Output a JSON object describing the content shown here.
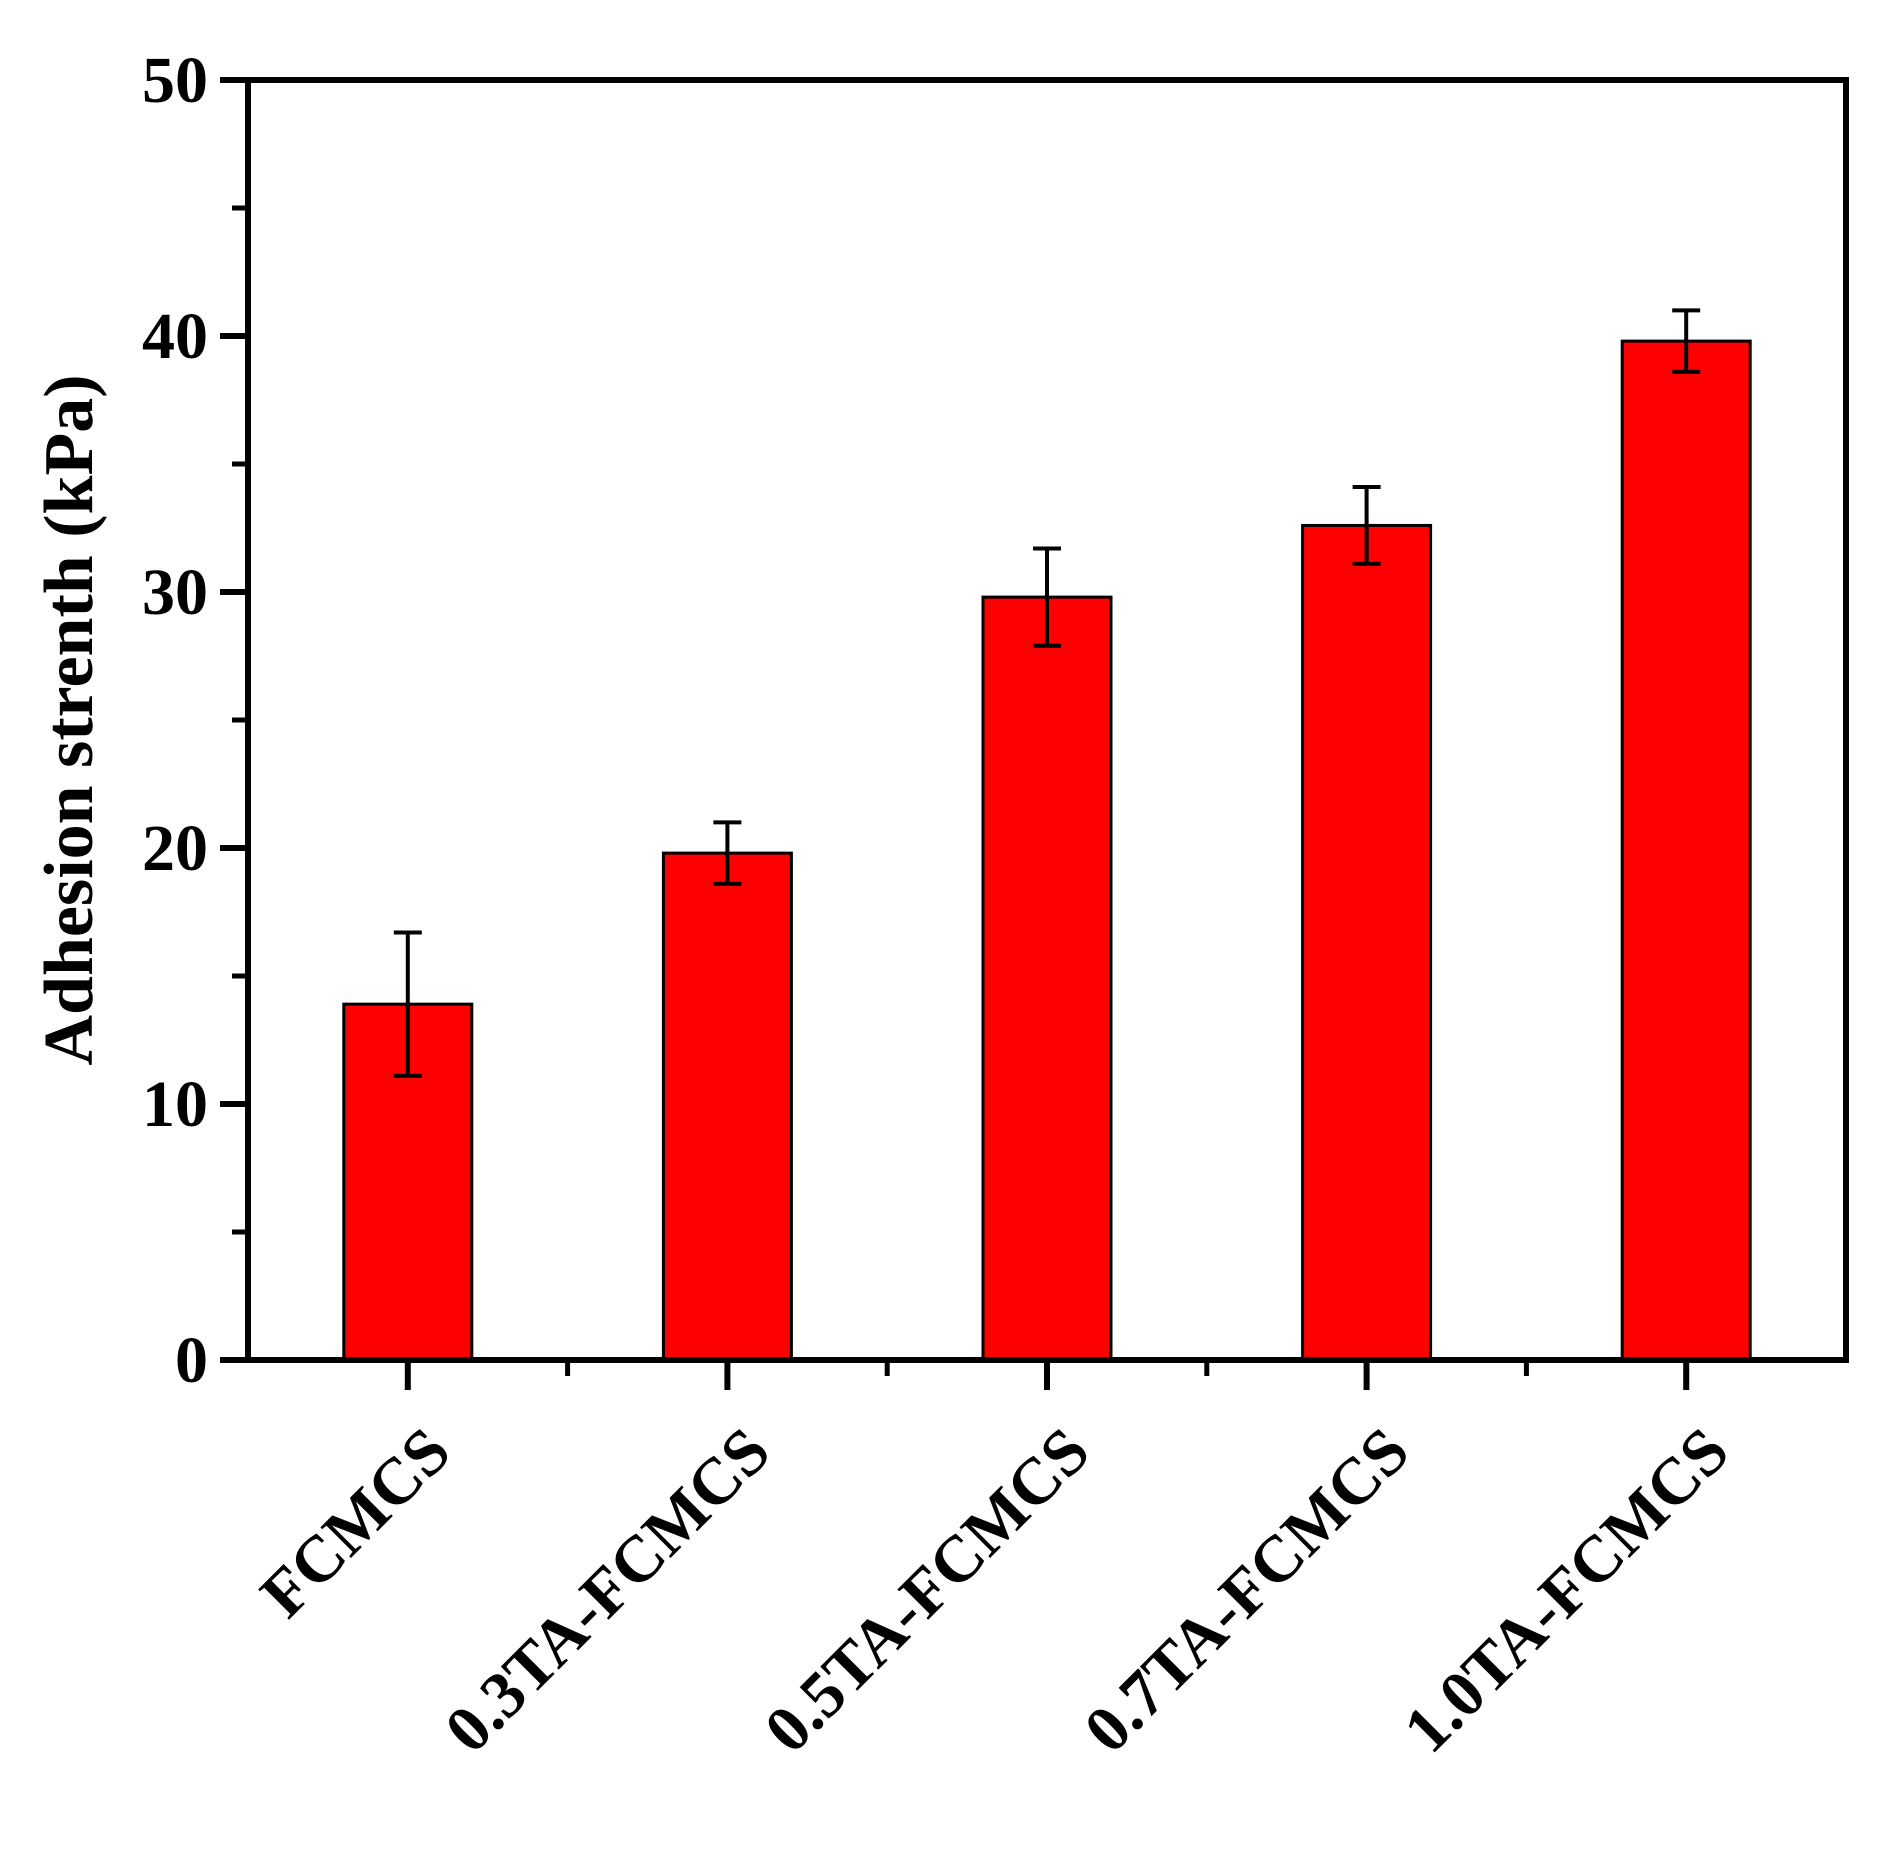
{
  "chart_data": {
    "type": "bar",
    "categories": [
      "FCMCS",
      "0.3TA-FCMCS",
      "0.5TA-FCMCS",
      "0.7TA-FCMCS",
      "1.0TA-FCMCS"
    ],
    "values": [
      13.9,
      19.8,
      29.8,
      32.6,
      39.8
    ],
    "errors": [
      2.8,
      1.2,
      1.9,
      1.5,
      1.2
    ],
    "xlabel": "",
    "ylabel": "Adhesion strenth (kPa)",
    "ylim": [
      0,
      50
    ],
    "yticks": [
      0,
      10,
      20,
      30,
      40,
      50
    ],
    "bar_color": "#ff0000",
    "legend": "none",
    "grid": false
  }
}
